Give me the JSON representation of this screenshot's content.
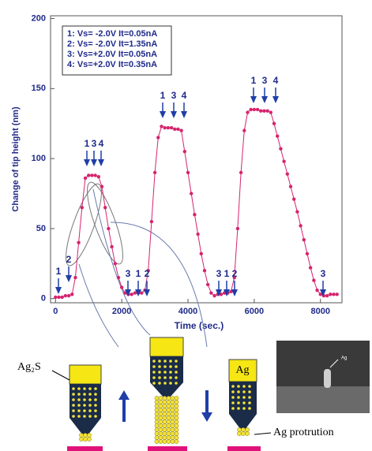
{
  "chart_data": {
    "type": "line",
    "y_label": "Change of tip height (nm)",
    "x_label": "Time (sec.)",
    "legend_lines": [
      "1: Vs= -2.0V  It=0.05nA",
      "2: Vs= -2.0V  It=1.35nA",
      "3: Vs=+2.0V  It=0.05nA",
      "4: Vs=+2.0V  It=0.35nA"
    ],
    "annotations": [
      "1",
      "2",
      "1",
      "3",
      "4",
      "3",
      "1",
      "2",
      "1",
      "3",
      "4",
      "3",
      "1",
      "2",
      "1",
      "3",
      "4",
      "3"
    ],
    "xlim": [
      -150,
      8650
    ],
    "ylim": [
      -3,
      202
    ],
    "xticks": [
      0,
      2000,
      4000,
      6000,
      8000
    ],
    "yticks": [
      0,
      50,
      100,
      150,
      200
    ],
    "series": [
      {
        "color": "#d6246e",
        "x": [
          0,
          100,
          200,
          300,
          400,
          500,
          600,
          700,
          800,
          900,
          1000,
          1100,
          1200,
          1300,
          1400,
          1500,
          1600,
          1700,
          1800,
          1900,
          2000,
          2100,
          2200,
          2300,
          2400,
          2500,
          2600,
          2700,
          2800,
          2900,
          3000,
          3100,
          3200,
          3300,
          3400,
          3500,
          3600,
          3700,
          3800,
          3900,
          4000,
          4100,
          4200,
          4300,
          4400,
          4500,
          4600,
          4700,
          4800,
          4900,
          5000,
          5100,
          5200,
          5300,
          5400,
          5500,
          5600,
          5700,
          5800,
          5900,
          6000,
          6100,
          6200,
          6300,
          6400,
          6500,
          6600,
          6700,
          6800,
          6900,
          7000,
          7100,
          7200,
          7300,
          7400,
          7500,
          7600,
          7700,
          7800,
          7900,
          8000,
          8100,
          8200,
          8300,
          8400,
          8500
        ],
        "values": [
          1,
          1,
          1,
          2,
          2,
          3,
          15,
          40,
          65,
          86,
          88,
          88,
          88,
          87,
          80,
          65,
          50,
          37,
          25,
          15,
          8,
          4,
          3,
          3,
          4,
          4,
          4,
          6,
          20,
          55,
          90,
          115,
          123,
          122,
          122,
          122,
          121,
          121,
          120,
          105,
          90,
          75,
          60,
          46,
          32,
          20,
          10,
          4,
          2,
          3,
          3,
          4,
          4,
          5,
          15,
          50,
          90,
          120,
          133,
          135,
          135,
          135,
          134,
          134,
          134,
          133,
          125,
          116,
          107,
          98,
          89,
          80,
          71,
          62,
          52,
          42,
          32,
          22,
          13,
          6,
          3,
          2,
          2,
          3,
          3,
          3
        ]
      }
    ]
  },
  "diagram": {
    "ag2s": "Ag₂S",
    "ag": "Ag",
    "protrusion": "Ag protrution",
    "sem_label": "Ag"
  }
}
